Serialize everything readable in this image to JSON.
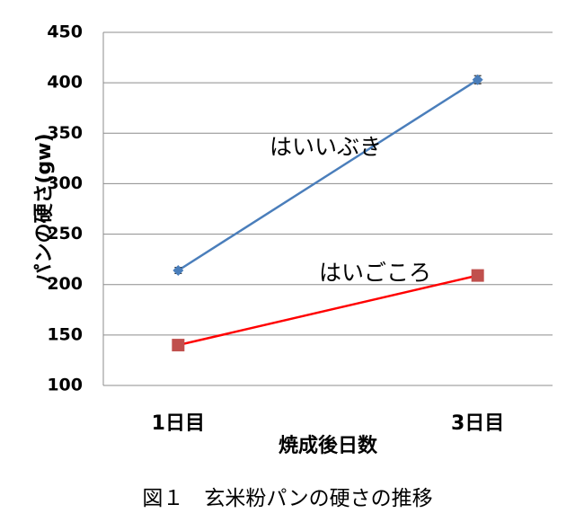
{
  "chart_data": {
    "type": "line",
    "categories": [
      "1日目",
      "3日目"
    ],
    "series": [
      {
        "name": "はいいぶき",
        "color": "#4a7ebb",
        "marker_color": "#4a7ebb",
        "marker": "diamond",
        "values": [
          214,
          403
        ],
        "errors": [
          3,
          4
        ]
      },
      {
        "name": "はいごころ",
        "color": "#ff0000",
        "marker_color": "#c0504d",
        "marker": "square",
        "values": [
          140,
          209
        ]
      }
    ],
    "ylim": [
      100,
      450
    ],
    "yticks": [
      100,
      150,
      200,
      250,
      300,
      350,
      400,
      450
    ],
    "grid": true,
    "y_label": "パンの硬さ(gw)",
    "x_label": "焼成後日数",
    "caption": "図１　玄米粉パンの硬さの推移"
  }
}
